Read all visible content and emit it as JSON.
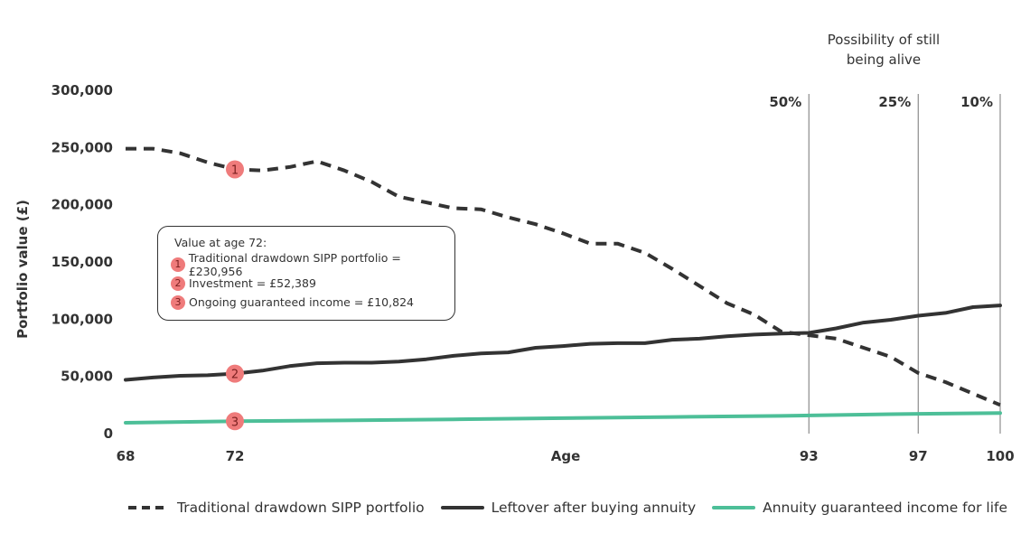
{
  "chart_data": {
    "type": "line",
    "xlabel": "Age",
    "ylabel": "Portfolio value (£)",
    "xlim": [
      68,
      100
    ],
    "ylim": [
      0,
      300000
    ],
    "x_ticks": [
      "68",
      "72",
      "93",
      "97",
      "100"
    ],
    "y_ticks": [
      "0",
      "50,000",
      "100,000",
      "150,000",
      "200,000",
      "250,000",
      "300,000"
    ],
    "series": [
      {
        "name": "Traditional drawdown SIPP portfolio",
        "style": "dashed",
        "color": "#333333",
        "x": [
          68,
          69,
          70,
          71,
          72,
          73,
          74,
          75,
          76,
          77,
          78,
          79,
          80,
          81,
          82,
          83,
          84,
          85,
          86,
          87,
          88,
          89,
          90,
          91,
          92,
          93,
          94,
          95,
          96,
          97,
          98,
          99,
          100
        ],
        "values": [
          249000,
          249000,
          245000,
          237000,
          231000,
          230000,
          233000,
          238000,
          230000,
          220000,
          207000,
          202000,
          197000,
          196000,
          189000,
          183000,
          175000,
          166000,
          166000,
          158000,
          144000,
          129000,
          114000,
          104000,
          89000,
          86000,
          83000,
          75000,
          67000,
          53000,
          45000,
          35000,
          25000
        ]
      },
      {
        "name": "Leftover after buying annuity",
        "style": "solid",
        "color": "#333333",
        "x": [
          68,
          69,
          70,
          71,
          72,
          73,
          74,
          75,
          76,
          77,
          78,
          79,
          80,
          81,
          82,
          83,
          84,
          85,
          86,
          87,
          88,
          89,
          90,
          91,
          92,
          93,
          94,
          95,
          96,
          97,
          98,
          99,
          100
        ],
        "values": [
          47000,
          49000,
          50500,
          51000,
          52389,
          55000,
          59000,
          61500,
          62000,
          62000,
          63000,
          65000,
          68000,
          70000,
          71000,
          75000,
          76500,
          78500,
          79000,
          79000,
          82000,
          83000,
          85000,
          86500,
          87500,
          88000,
          92000,
          97000,
          99500,
          103000,
          105500,
          110500,
          112000
        ]
      },
      {
        "name": "Annuity guaranteed income for life",
        "style": "solid",
        "color": "#4dbf98",
        "x": [
          68,
          72,
          76,
          80,
          84,
          88,
          92,
          96,
          100
        ],
        "values": [
          9500,
          10824,
          11500,
          12500,
          13500,
          14500,
          15500,
          17000,
          18000
        ]
      }
    ],
    "vertical_lines": [
      {
        "x": 93,
        "label": "50%"
      },
      {
        "x": 97,
        "label": "25%"
      },
      {
        "x": 100,
        "label": "10%"
      }
    ],
    "vertical_lines_title": [
      "Possibility of still",
      "being alive"
    ],
    "markers": [
      {
        "x": 72,
        "y": 230956,
        "label": "1",
        "series": "Traditional drawdown SIPP portfolio"
      },
      {
        "x": 72,
        "y": 52389,
        "label": "2",
        "series": "Leftover after buying annuity"
      },
      {
        "x": 72,
        "y": 10824,
        "label": "3",
        "series": "Annuity guaranteed income for life"
      }
    ],
    "annotation": {
      "title": "Value at age 72:",
      "items": [
        {
          "badge": "1",
          "text": "Traditional drawdown SIPP portfolio = £230,956"
        },
        {
          "badge": "2",
          "text": "Investment = £52,389"
        },
        {
          "badge": "3",
          "text": "Ongoing guaranteed income = £10,824"
        }
      ]
    },
    "legend": {
      "position": "bottom",
      "items": [
        {
          "label": "Traditional drawdown SIPP portfolio",
          "style": "dashed",
          "color": "#333333"
        },
        {
          "label": "Leftover after buying annuity",
          "style": "solid",
          "color": "#333333"
        },
        {
          "label": "Annuity guaranteed income for life",
          "style": "solid",
          "color": "#4dbf98"
        }
      ]
    },
    "marker_color": "#ef7b7b"
  }
}
